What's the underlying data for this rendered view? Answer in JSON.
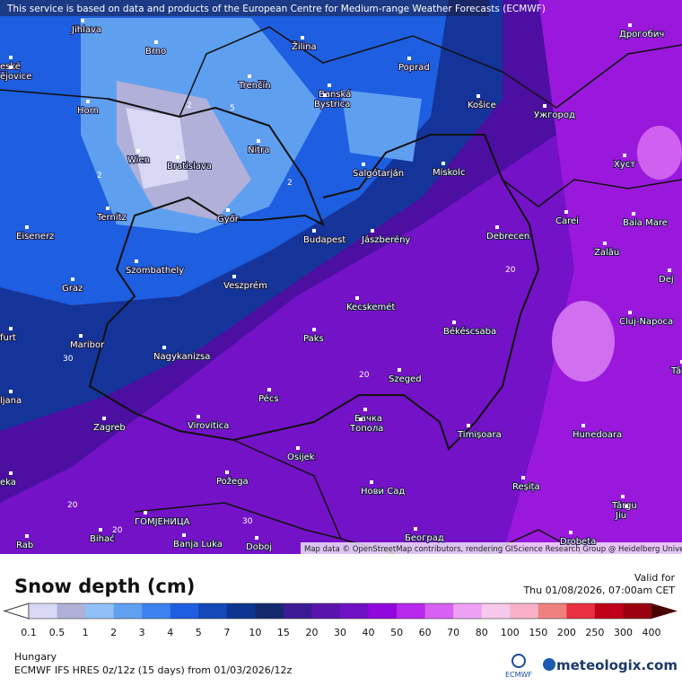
{
  "header": {
    "notice": "This service is based on data and products of the European Centre for Medium-range Weather Forecasts (ECMWF)",
    "attribution": "Map data © OpenStreetMap contributors, rendering GIScience Research Group @ Heidelberg University"
  },
  "cities": [
    "Jihlava",
    "Brno",
    "Žilina",
    "Poprad",
    "Дрогобич",
    "eské",
    "ějovice",
    "Trenčín",
    "Banská",
    "Bystrica",
    "Košice",
    "Ужгород",
    "Horn",
    "Nitra",
    "Wien",
    "Bratislava",
    "Salgótarján",
    "Miskolc",
    "Хуст",
    "Ternitz",
    "Győr",
    "Carei",
    "Baia Mare",
    "Eisenerz",
    "Budapest",
    "Jászberény",
    "Debrecen",
    "Szombathely",
    "Zalău",
    "Graz",
    "Veszprém",
    "Dej",
    "Kecskemét",
    "Cluj-Napoca",
    "furt",
    "Maribor",
    "Paks",
    "Békéscsaba",
    "Nagykanizsa",
    "Tâ",
    "Szeged",
    "ljana",
    "Pécs",
    "Бачка",
    "Топола",
    "Zagreb",
    "Virovitica",
    "Timișoara",
    "Hunedoara",
    "Osijek",
    "Požega",
    "eka",
    "Reșița",
    "Нови Сад",
    "Târgu",
    "Jiu",
    "ГОМЈЕНИЦА",
    "Bihać",
    "Banja Luka",
    "Doboj",
    "Београд",
    "Rab",
    "Drobeta"
  ],
  "contour_labels": [
    "2",
    "5",
    "2",
    "2",
    "20",
    "20",
    "20",
    "30",
    "30",
    "20"
  ],
  "legend": {
    "title": "Snow depth (cm)",
    "valid_label": "Valid for",
    "valid_time": "Thu 01/08/2026, 07:00am CET",
    "labels": [
      "0.1",
      "0.5",
      "1",
      "2",
      "3",
      "4",
      "5",
      "7",
      "10",
      "15",
      "20",
      "30",
      "40",
      "50",
      "60",
      "70",
      "80",
      "100",
      "150",
      "200",
      "250",
      "300",
      "400"
    ],
    "under_color": "#ffffff",
    "over_color": "#4a0000",
    "colors": [
      "#d8d8f5",
      "#b0b0d8",
      "#8fc0f8",
      "#60a0f0",
      "#3c82f0",
      "#1e5ee0",
      "#1448b8",
      "#0c3490",
      "#14286e",
      "#3c1a96",
      "#5a14ac",
      "#7010c4",
      "#9008dc",
      "#b828ec",
      "#d860f2",
      "#eea0f5",
      "#f6c8ec",
      "#f8b0c8",
      "#f08080",
      "#e83040",
      "#c00018",
      "#9a0010"
    ]
  },
  "footer": {
    "region": "Hungary",
    "model": "ECMWF IFS HRES 0z/12z (15 days) from 01/03/2026/12z",
    "ecmwf_logo": "ECMWF",
    "brand": "meteologix.com"
  }
}
